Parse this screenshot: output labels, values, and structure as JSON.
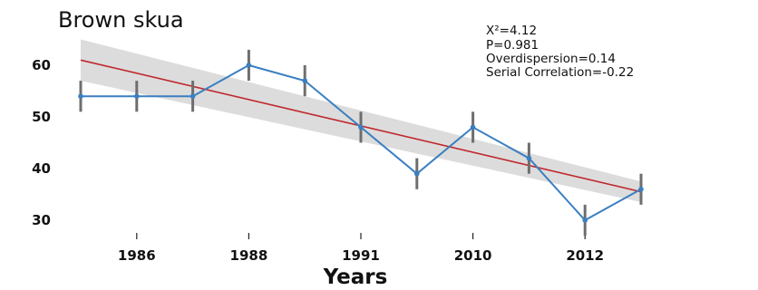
{
  "chart_data": {
    "type": "line",
    "title": "Brown skua",
    "xlabel": "Years",
    "ylabel": "",
    "categories": [
      "",
      "1986",
      "",
      "1988",
      "",
      "1991",
      "",
      "2010",
      "",
      "2012",
      ""
    ],
    "series": [
      {
        "values": [
          54,
          54,
          54,
          60,
          57,
          48,
          39,
          48,
          42,
          30,
          36
        ],
        "error": [
          3,
          3,
          3,
          3,
          3,
          3,
          3,
          3,
          3,
          3,
          3
        ],
        "color": "#3a7fc0"
      }
    ],
    "trend": {
      "start": 61,
      "end": 35.5,
      "band_start": [
        57,
        65
      ],
      "band_end": [
        33.5,
        37.5
      ],
      "color": "#c0272d",
      "band_color": "#dcdcdc"
    },
    "error_bar_color": "#6e6e6e",
    "ylim": [
      28,
      64
    ],
    "yticks": [
      30,
      40,
      50,
      60
    ],
    "grid": false,
    "legend": "none",
    "stats": [
      "X²=4.12",
      "P=0.981",
      "Overdispersion=0.14",
      "Serial Correlation=-0.22"
    ]
  }
}
